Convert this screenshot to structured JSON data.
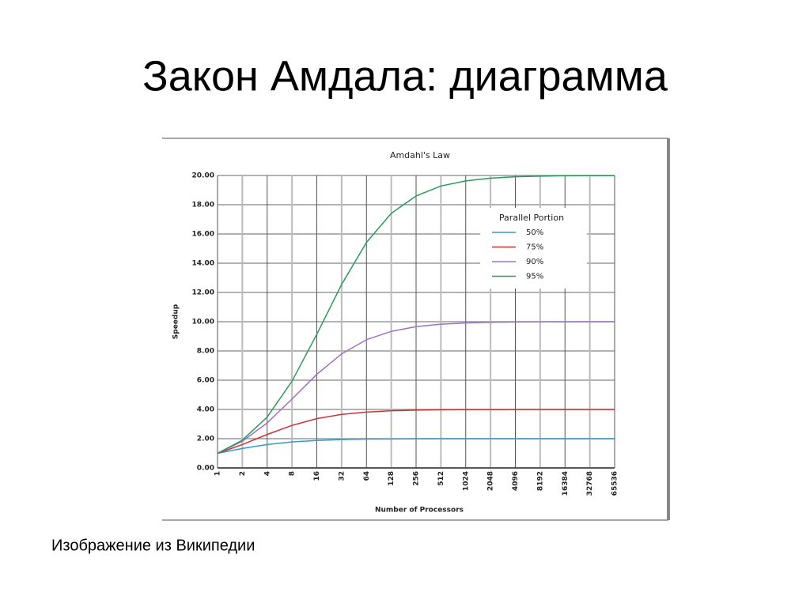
{
  "slide_title": "Закон Амдала: диаграмма",
  "caption": "Изображение из Википедии",
  "chart_data": {
    "type": "line",
    "title": "Amdahl's Law",
    "x_label": "Number of Processors",
    "y_label": "Speedup",
    "x": [
      1,
      2,
      4,
      8,
      16,
      32,
      64,
      128,
      256,
      512,
      1024,
      2048,
      4096,
      8192,
      16384,
      32768,
      65536
    ],
    "x_log_base": 2,
    "xlim": [
      1,
      65536
    ],
    "xticks": [
      1,
      2,
      4,
      8,
      16,
      32,
      64,
      128,
      256,
      512,
      1024,
      2048,
      4096,
      8192,
      16384,
      32768,
      65536
    ],
    "ylim": [
      0,
      20
    ],
    "yticks": [
      {
        "value": 0,
        "label": "0.00"
      },
      {
        "value": 2,
        "label": "2.00"
      },
      {
        "value": 4,
        "label": "4.00"
      },
      {
        "value": 6,
        "label": "6.00"
      },
      {
        "value": 8,
        "label": "8.00"
      },
      {
        "value": 10,
        "label": "10.00"
      },
      {
        "value": 12,
        "label": "12.00"
      },
      {
        "value": 14,
        "label": "14.00"
      },
      {
        "value": 16,
        "label": "16.00"
      },
      {
        "value": 18,
        "label": "18.00"
      },
      {
        "value": 20,
        "label": "20.00"
      }
    ],
    "grid": true,
    "legend_title": "Parallel Portion",
    "legend_position": "upper-right",
    "series": [
      {
        "name": "50%",
        "color": "#3399cc",
        "values": [
          1,
          1.33,
          1.6,
          1.78,
          1.88,
          1.94,
          1.97,
          1.98,
          1.99,
          2,
          2,
          2,
          2,
          2,
          2,
          2,
          2
        ]
      },
      {
        "name": "75%",
        "color": "#cc3333",
        "values": [
          1,
          1.6,
          2.29,
          2.91,
          3.37,
          3.66,
          3.82,
          3.91,
          3.95,
          3.98,
          3.99,
          3.99,
          4,
          4,
          4,
          4,
          4
        ]
      },
      {
        "name": "90%",
        "color": "#a070c0",
        "values": [
          1,
          1.82,
          3.08,
          4.71,
          6.4,
          7.8,
          8.77,
          9.34,
          9.66,
          9.83,
          9.91,
          9.96,
          9.98,
          9.99,
          9.99,
          10,
          10
        ]
      },
      {
        "name": "95%",
        "color": "#2a9a5a",
        "values": [
          1,
          1.9,
          3.48,
          5.93,
          9.14,
          12.55,
          15.42,
          17.41,
          18.6,
          19.28,
          19.63,
          19.82,
          19.91,
          19.95,
          19.98,
          19.99,
          19.99
        ]
      }
    ]
  }
}
